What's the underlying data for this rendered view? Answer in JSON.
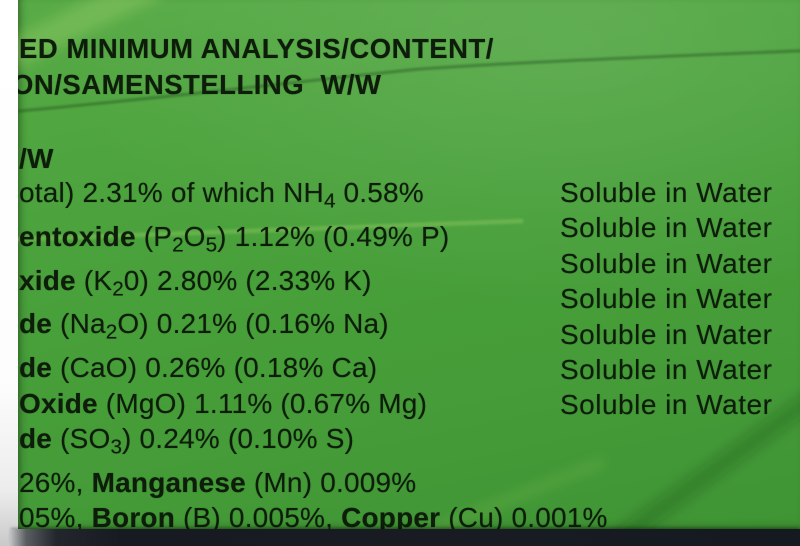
{
  "label": {
    "header": {
      "line1": "ED MINIMUM ANALYSIS/CONTENT/",
      "line2": "ON/SAMENSTELLING  W/W"
    },
    "subheader": "/W",
    "rows": [
      {
        "segments": [
          {
            "t": "otal) 2.31% of which NH"
          },
          {
            "t": "4",
            "sub": true
          },
          {
            "t": " 0.58%"
          }
        ],
        "right": "Soluble in Water"
      },
      {
        "segments": [
          {
            "t": "entoxide",
            "b": true
          },
          {
            "t": " (P"
          },
          {
            "t": "2",
            "sub": true
          },
          {
            "t": "O"
          },
          {
            "t": "5",
            "sub": true
          },
          {
            "t": ") 1.12% (0.49% P)"
          }
        ],
        "right": "Soluble in Water"
      },
      {
        "segments": [
          {
            "t": "xide",
            "b": true
          },
          {
            "t": " (K"
          },
          {
            "t": "2",
            "sub": true
          },
          {
            "t": "0) 2.80% (2.33% K)"
          }
        ],
        "right": "Soluble in Water"
      },
      {
        "segments": [
          {
            "t": "de",
            "b": true
          },
          {
            "t": " (Na"
          },
          {
            "t": "2",
            "sub": true
          },
          {
            "t": "O) 0.21% (0.16% Na)"
          }
        ],
        "right": "Soluble in Water"
      },
      {
        "segments": [
          {
            "t": "de",
            "b": true
          },
          {
            "t": " (CaO) 0.26% (0.18% Ca)"
          }
        ],
        "right": "Soluble in Water"
      },
      {
        "segments": [
          {
            "t": "Oxide",
            "b": true
          },
          {
            "t": " (MgO) 1.11% (0.67% Mg)"
          }
        ],
        "right": "Soluble in Water"
      },
      {
        "segments": [
          {
            "t": "de",
            "b": true
          },
          {
            "t": " (SO"
          },
          {
            "t": "3",
            "sub": true
          },
          {
            "t": ") 0.24% (0.10% S)"
          }
        ],
        "right": "Soluble in Water"
      },
      {
        "segments": [
          {
            "t": "26%, "
          },
          {
            "t": "Manganese",
            "b": true
          },
          {
            "t": " (Mn) 0.009%"
          }
        ]
      },
      {
        "segments": [
          {
            "t": "05%, "
          },
          {
            "t": "Boron",
            "b": true
          },
          {
            "t": " (B) 0.005%, "
          },
          {
            "t": "Copper",
            "b": true
          },
          {
            "t": " (Cu) 0.001%"
          }
        ]
      }
    ],
    "colors": {
      "label_green": "#48a03a",
      "text_dark": "#0d1d0a",
      "bottom_strip_dark": "#171b21",
      "left_margin_white": "#ffffff"
    }
  }
}
